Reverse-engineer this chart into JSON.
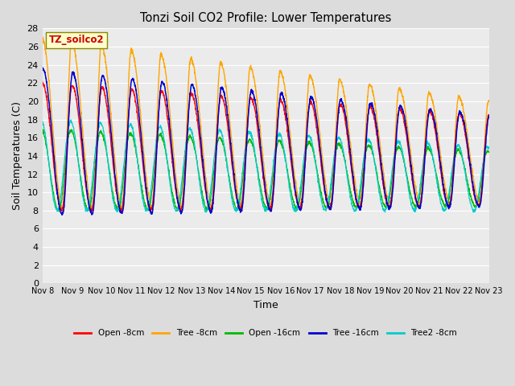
{
  "title": "Tonzi Soil CO2 Profile: Lower Temperatures",
  "xlabel": "Time",
  "ylabel": "Soil Temperatures (C)",
  "ylim": [
    0,
    28
  ],
  "yticks": [
    0,
    2,
    4,
    6,
    8,
    10,
    12,
    14,
    16,
    18,
    20,
    22,
    24,
    26,
    28
  ],
  "xtick_labels": [
    "Nov 8",
    "Nov 9",
    "Nov 10",
    "Nov 11",
    "Nov 12",
    "Nov 13",
    "Nov 14",
    "Nov 15",
    "Nov 16",
    "Nov 17",
    "Nov 18",
    "Nov 19",
    "Nov 20",
    "Nov 21",
    "Nov 22",
    "Nov 23"
  ],
  "legend_entries": [
    "Open -8cm",
    "Tree -8cm",
    "Open -16cm",
    "Tree -16cm",
    "Tree2 -8cm"
  ],
  "legend_colors": [
    "#FF0000",
    "#FFA500",
    "#00BB00",
    "#0000CC",
    "#00CCCC"
  ],
  "line_colors": {
    "open8": "#FF0000",
    "tree8": "#FFA500",
    "open16": "#00BB00",
    "tree16": "#0000CC",
    "tree2_8": "#00CCCC"
  },
  "watermark_text": "TZ_soilco2",
  "watermark_color": "#CC0000",
  "watermark_bg": "#FFFFCC",
  "background_color": "#DCDCDC",
  "plot_bg_color": "#EBEBEB",
  "n_days": 15,
  "n_points_per_day": 144
}
